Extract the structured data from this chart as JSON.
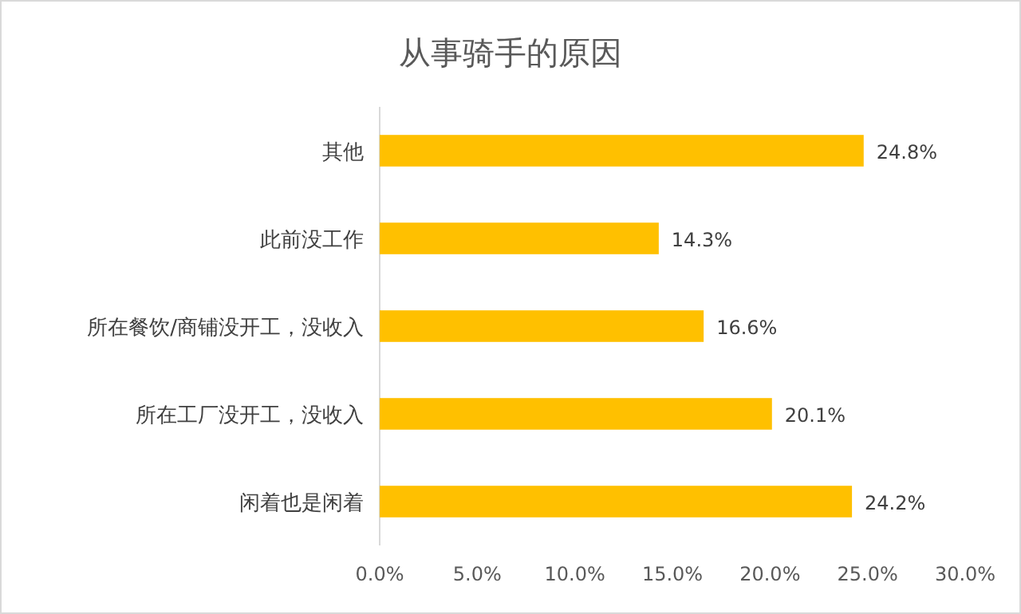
{
  "chart_data": {
    "type": "bar",
    "orientation": "horizontal",
    "title": "从事骑手的原因",
    "categories": [
      "其他",
      "此前没工作",
      "所在餐饮/商铺没开工，没收入",
      "所在工厂没开工，没收入",
      "闲着也是闲着"
    ],
    "values": [
      24.8,
      14.3,
      16.6,
      20.1,
      24.2
    ],
    "value_labels": [
      "24.8%",
      "14.3%",
      "16.6%",
      "20.1%",
      "24.2%"
    ],
    "color": "#ffc000",
    "xlim": [
      0,
      30
    ],
    "xticks": [
      {
        "value": 0,
        "label": "0.0%"
      },
      {
        "value": 5,
        "label": "5.0%"
      },
      {
        "value": 10,
        "label": "10.0%"
      },
      {
        "value": 15,
        "label": "15.0%"
      },
      {
        "value": 20,
        "label": "20.0%"
      },
      {
        "value": 25,
        "label": "25.0%"
      },
      {
        "value": 30,
        "label": "30.0%"
      }
    ],
    "grid": false
  }
}
